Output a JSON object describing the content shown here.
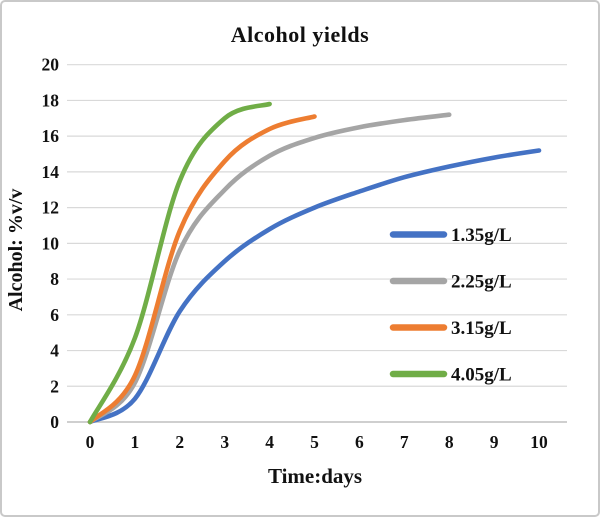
{
  "frame": {
    "background_color": "#ffffff",
    "border_color": "#c9c9c9"
  },
  "chart_data": {
    "type": "line",
    "title": "Alcohol yields",
    "xlabel": "Time:days",
    "ylabel": "Alcohol: %v/v",
    "xlim": [
      0,
      10
    ],
    "ylim": [
      0,
      20
    ],
    "x_ticks": [
      0,
      1,
      2,
      3,
      4,
      5,
      6,
      7,
      8,
      9,
      10
    ],
    "y_ticks": [
      0,
      2,
      4,
      6,
      8,
      10,
      12,
      14,
      16,
      18,
      20
    ],
    "grid": "horizontal",
    "grid_color": "#d9d9d9",
    "axis_line_color": "#bfbfbf",
    "line_style": "smooth",
    "legend_position": "inside-right",
    "series": [
      {
        "name": "1.35g/L",
        "color": "#4472C4",
        "x": [
          0,
          1,
          2,
          3,
          4,
          5,
          6,
          7,
          8,
          9,
          10
        ],
        "y": [
          0,
          1.3,
          6.2,
          9.0,
          10.8,
          12.0,
          12.9,
          13.7,
          14.3,
          14.8,
          15.2
        ]
      },
      {
        "name": "2.25g/L",
        "color": "#A5A5A5",
        "x": [
          0,
          1,
          2,
          3,
          4,
          5,
          6,
          7,
          8
        ],
        "y": [
          0,
          2.2,
          9.6,
          13.0,
          14.9,
          15.9,
          16.5,
          16.9,
          17.2
        ]
      },
      {
        "name": "3.15g/L",
        "color": "#ED7D31",
        "x": [
          0,
          1,
          2,
          3,
          4,
          5
        ],
        "y": [
          0,
          2.6,
          10.7,
          14.6,
          16.4,
          17.1
        ]
      },
      {
        "name": "4.05g/L",
        "color": "#70AD47",
        "x": [
          0,
          1,
          2,
          3,
          4
        ],
        "y": [
          0,
          4.7,
          13.5,
          17.0,
          17.8
        ]
      }
    ]
  }
}
